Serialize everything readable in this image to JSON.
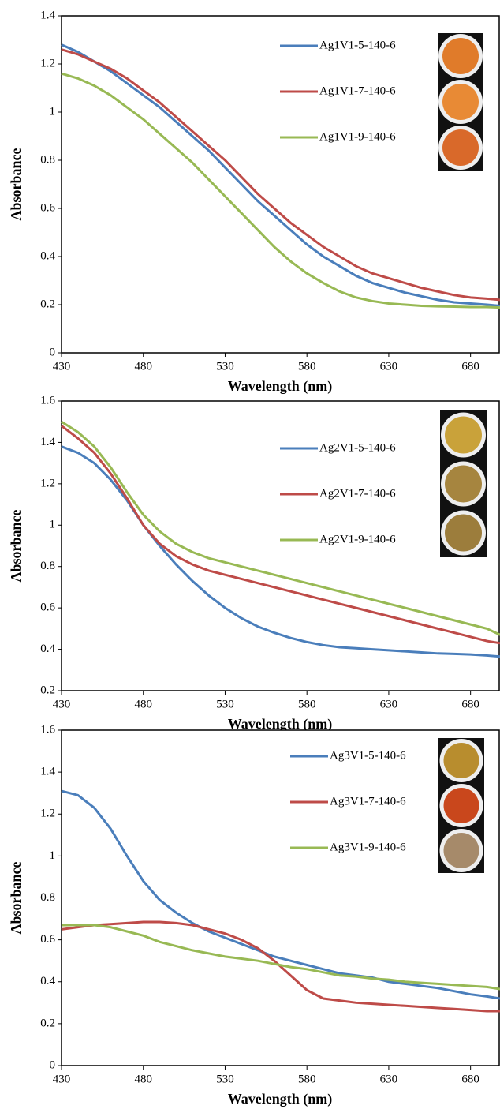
{
  "chart_data": [
    {
      "type": "line",
      "x_label": "Wavelength (nm)",
      "y_label": "Absorbance",
      "x": [
        430,
        440,
        450,
        460,
        470,
        480,
        490,
        500,
        510,
        520,
        530,
        540,
        550,
        560,
        570,
        580,
        590,
        600,
        610,
        620,
        630,
        640,
        650,
        660,
        670,
        680,
        690,
        698
      ],
      "xlim": [
        430,
        698
      ],
      "xticks": [
        430,
        480,
        530,
        580,
        630,
        680
      ],
      "ylim": [
        0,
        1.4
      ],
      "yticks": [
        0,
        0.2,
        0.4,
        0.6,
        0.8,
        1,
        1.2,
        1.4
      ],
      "series": [
        {
          "name": "Ag1V1-5-140-6",
          "color": "#4a7ebb",
          "values": [
            1.28,
            1.25,
            1.21,
            1.17,
            1.12,
            1.07,
            1.02,
            0.96,
            0.9,
            0.84,
            0.77,
            0.7,
            0.63,
            0.57,
            0.51,
            0.45,
            0.4,
            0.36,
            0.32,
            0.29,
            0.27,
            0.25,
            0.235,
            0.22,
            0.21,
            0.205,
            0.2,
            0.195
          ]
        },
        {
          "name": "Ag1V1-7-140-6",
          "color": "#be4b48",
          "values": [
            1.26,
            1.24,
            1.21,
            1.18,
            1.14,
            1.09,
            1.04,
            0.98,
            0.92,
            0.86,
            0.8,
            0.73,
            0.66,
            0.6,
            0.54,
            0.49,
            0.44,
            0.4,
            0.36,
            0.33,
            0.31,
            0.29,
            0.27,
            0.255,
            0.24,
            0.23,
            0.225,
            0.22
          ]
        },
        {
          "name": "Ag1V1-9-140-6",
          "color": "#98b954",
          "values": [
            1.16,
            1.14,
            1.11,
            1.07,
            1.02,
            0.97,
            0.91,
            0.85,
            0.79,
            0.72,
            0.65,
            0.58,
            0.51,
            0.44,
            0.38,
            0.33,
            0.29,
            0.255,
            0.23,
            0.215,
            0.205,
            0.2,
            0.195,
            0.193,
            0.192,
            0.19,
            0.19,
            0.188
          ]
        }
      ]
    },
    {
      "type": "line",
      "x_label": "Wavelength (nm)",
      "y_label": "Absorbance",
      "x": [
        430,
        440,
        450,
        460,
        470,
        480,
        490,
        500,
        510,
        520,
        530,
        540,
        550,
        560,
        570,
        580,
        590,
        600,
        610,
        620,
        630,
        640,
        650,
        660,
        670,
        680,
        690,
        698
      ],
      "xlim": [
        430,
        698
      ],
      "xticks": [
        430,
        480,
        530,
        580,
        630,
        680
      ],
      "ylim": [
        0.2,
        1.6
      ],
      "yticks": [
        0.2,
        0.4,
        0.6,
        0.8,
        1,
        1.2,
        1.4,
        1.6
      ],
      "series": [
        {
          "name": "Ag2V1-5-140-6",
          "color": "#4a7ebb",
          "values": [
            1.38,
            1.35,
            1.3,
            1.22,
            1.12,
            1.0,
            0.9,
            0.81,
            0.73,
            0.66,
            0.6,
            0.55,
            0.51,
            0.48,
            0.455,
            0.435,
            0.42,
            0.41,
            0.405,
            0.4,
            0.395,
            0.39,
            0.385,
            0.38,
            0.378,
            0.375,
            0.37,
            0.365
          ]
        },
        {
          "name": "Ag2V1-7-140-6",
          "color": "#be4b48",
          "values": [
            1.48,
            1.42,
            1.35,
            1.25,
            1.13,
            1.0,
            0.91,
            0.85,
            0.81,
            0.78,
            0.76,
            0.74,
            0.72,
            0.7,
            0.68,
            0.66,
            0.64,
            0.62,
            0.6,
            0.58,
            0.56,
            0.54,
            0.52,
            0.5,
            0.48,
            0.46,
            0.44,
            0.43
          ]
        },
        {
          "name": "Ag2V1-9-140-6",
          "color": "#98b954",
          "values": [
            1.5,
            1.45,
            1.38,
            1.28,
            1.16,
            1.05,
            0.97,
            0.91,
            0.87,
            0.84,
            0.82,
            0.8,
            0.78,
            0.76,
            0.74,
            0.72,
            0.7,
            0.68,
            0.66,
            0.64,
            0.62,
            0.6,
            0.58,
            0.56,
            0.54,
            0.52,
            0.5,
            0.47
          ]
        }
      ]
    },
    {
      "type": "line",
      "x_label": "Wavelength (nm)",
      "y_label": "Absorbance",
      "x": [
        430,
        440,
        450,
        460,
        470,
        480,
        490,
        500,
        510,
        520,
        530,
        540,
        550,
        560,
        570,
        580,
        590,
        600,
        610,
        620,
        630,
        640,
        650,
        660,
        670,
        680,
        690,
        698
      ],
      "xlim": [
        430,
        698
      ],
      "xticks": [
        430,
        480,
        530,
        580,
        630,
        680
      ],
      "ylim": [
        0,
        1.6
      ],
      "yticks": [
        0,
        0.2,
        0.4,
        0.6,
        0.8,
        1,
        1.2,
        1.4,
        1.6
      ],
      "series": [
        {
          "name": "Ag3V1-5-140-6",
          "color": "#4a7ebb",
          "values": [
            1.31,
            1.29,
            1.23,
            1.13,
            1.0,
            0.88,
            0.79,
            0.73,
            0.68,
            0.64,
            0.61,
            0.58,
            0.55,
            0.52,
            0.5,
            0.48,
            0.46,
            0.44,
            0.43,
            0.42,
            0.4,
            0.39,
            0.38,
            0.37,
            0.355,
            0.34,
            0.33,
            0.32
          ]
        },
        {
          "name": "Ag3V1-7-140-6",
          "color": "#be4b48",
          "values": [
            0.65,
            0.66,
            0.67,
            0.675,
            0.68,
            0.685,
            0.685,
            0.68,
            0.67,
            0.65,
            0.63,
            0.6,
            0.56,
            0.5,
            0.43,
            0.36,
            0.32,
            0.31,
            0.3,
            0.295,
            0.29,
            0.285,
            0.28,
            0.275,
            0.27,
            0.265,
            0.26,
            0.26
          ]
        },
        {
          "name": "Ag3V1-9-140-6",
          "color": "#98b954",
          "values": [
            0.67,
            0.67,
            0.67,
            0.66,
            0.64,
            0.62,
            0.59,
            0.57,
            0.55,
            0.535,
            0.52,
            0.51,
            0.5,
            0.485,
            0.47,
            0.46,
            0.445,
            0.43,
            0.425,
            0.415,
            0.41,
            0.4,
            0.395,
            0.39,
            0.385,
            0.38,
            0.375,
            0.365
          ]
        }
      ]
    }
  ]
}
